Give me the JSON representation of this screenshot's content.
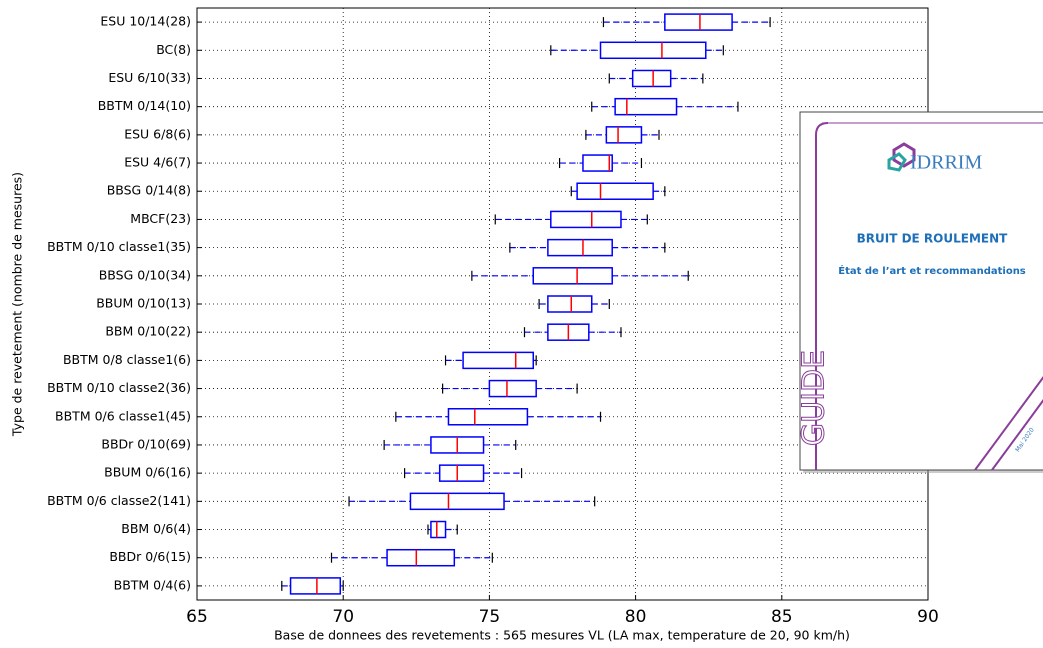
{
  "chart_data": {
    "type": "boxplot",
    "xlabel": "Base de donnees des revetements : 565 mesures VL (LA max, temperature de 20, 90 km/h)",
    "ylabel": "Type de revetement (nombre de mesures)",
    "xlim": [
      65,
      90
    ],
    "xticks": [
      65,
      70,
      75,
      80,
      85,
      90
    ],
    "grid": true,
    "box_color": "#0000ff",
    "median_color": "#ff0000",
    "boxes": [
      {
        "label": "ESU 10/14(28)",
        "whislo": 78.9,
        "q1": 81.0,
        "median": 82.2,
        "q3": 83.3,
        "whishi": 84.6
      },
      {
        "label": "BC(8)",
        "whislo": 77.1,
        "q1": 78.8,
        "median": 80.9,
        "q3": 82.4,
        "whishi": 83.0
      },
      {
        "label": "ESU 6/10(33)",
        "whislo": 79.1,
        "q1": 79.9,
        "median": 80.6,
        "q3": 81.2,
        "whishi": 82.3
      },
      {
        "label": "BBTM 0/14(10)",
        "whislo": 78.5,
        "q1": 79.3,
        "median": 79.7,
        "q3": 81.4,
        "whishi": 83.5
      },
      {
        "label": "ESU 6/8(6)",
        "whislo": 78.3,
        "q1": 79.0,
        "median": 79.4,
        "q3": 80.2,
        "whishi": 80.8
      },
      {
        "label": "ESU 4/6(7)",
        "whislo": 77.4,
        "q1": 78.2,
        "median": 79.1,
        "q3": 79.2,
        "whishi": 80.2
      },
      {
        "label": "BBSG 0/14(8)",
        "whislo": 77.8,
        "q1": 78.0,
        "median": 78.8,
        "q3": 80.6,
        "whishi": 81.0
      },
      {
        "label": "MBCF(23)",
        "whislo": 75.2,
        "q1": 77.1,
        "median": 78.5,
        "q3": 79.5,
        "whishi": 80.4
      },
      {
        "label": "BBTM 0/10 classe1(35)",
        "whislo": 75.7,
        "q1": 77.0,
        "median": 78.2,
        "q3": 79.2,
        "whishi": 81.0
      },
      {
        "label": "BBSG 0/10(34)",
        "whislo": 74.4,
        "q1": 76.5,
        "median": 78.0,
        "q3": 79.2,
        "whishi": 81.8
      },
      {
        "label": "BBUM 0/10(13)",
        "whislo": 76.7,
        "q1": 77.0,
        "median": 77.8,
        "q3": 78.5,
        "whishi": 79.1
      },
      {
        "label": "BBM 0/10(22)",
        "whislo": 76.2,
        "q1": 77.0,
        "median": 77.7,
        "q3": 78.4,
        "whishi": 79.5
      },
      {
        "label": "BBTM 0/8 classe1(6)",
        "whislo": 73.5,
        "q1": 74.1,
        "median": 75.9,
        "q3": 76.5,
        "whishi": 76.6
      },
      {
        "label": "BBTM 0/10 classe2(36)",
        "whislo": 73.4,
        "q1": 75.0,
        "median": 75.6,
        "q3": 76.6,
        "whishi": 78.0
      },
      {
        "label": "BBTM 0/6 classe1(45)",
        "whislo": 71.8,
        "q1": 73.6,
        "median": 74.5,
        "q3": 76.3,
        "whishi": 78.8
      },
      {
        "label": "BBDr 0/10(69)",
        "whislo": 71.4,
        "q1": 73.0,
        "median": 73.9,
        "q3": 74.8,
        "whishi": 75.9
      },
      {
        "label": "BBUM 0/6(16)",
        "whislo": 72.1,
        "q1": 73.3,
        "median": 73.9,
        "q3": 74.8,
        "whishi": 76.1
      },
      {
        "label": "BBTM 0/6 classe2(141)",
        "whislo": 70.2,
        "q1": 72.3,
        "median": 73.6,
        "q3": 75.5,
        "whishi": 78.6
      },
      {
        "label": "BBM 0/6(4)",
        "whislo": 72.9,
        "q1": 73.0,
        "median": 73.2,
        "q3": 73.5,
        "whishi": 73.9
      },
      {
        "label": "BBDr 0/6(15)",
        "whislo": 69.6,
        "q1": 71.5,
        "median": 72.5,
        "q3": 73.8,
        "whishi": 75.1
      },
      {
        "label": "BBTM 0/4(6)",
        "whislo": 67.9,
        "q1": 68.2,
        "median": 69.1,
        "q3": 69.9,
        "whishi": 70.0
      }
    ]
  },
  "inset": {
    "logo": "IDRRIM",
    "title": "BRUIT DE ROULEMENT",
    "subtitle": "État de l’art et recommandations",
    "side": "GUIDE",
    "date": "Mai 2020"
  }
}
